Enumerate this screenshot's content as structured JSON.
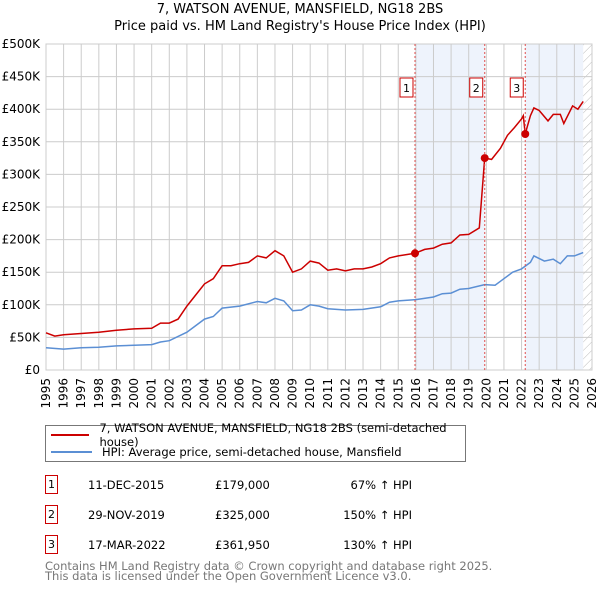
{
  "title": {
    "line1": "7, WATSON AVENUE, MANSFIELD, NG18 2BS",
    "line2": "Price paid vs. HM Land Registry's House Price Index (HPI)"
  },
  "colors": {
    "property": "#cc0000",
    "hpi": "#5b8fd4",
    "shade": "#eef3fc",
    "grid": "#cccccc"
  },
  "chart_data": {
    "type": "line",
    "title": "Price paid vs. HM Land Registry's House Price Index (HPI)",
    "xlim": [
      1995,
      2026
    ],
    "ylim": [
      0,
      500000
    ],
    "x_ticks": [
      "1995",
      "1996",
      "1997",
      "1998",
      "1999",
      "2000",
      "2001",
      "2002",
      "2003",
      "2004",
      "2005",
      "2006",
      "2007",
      "2008",
      "2009",
      "2010",
      "2011",
      "2012",
      "2013",
      "2014",
      "2015",
      "2016",
      "2017",
      "2018",
      "2019",
      "2020",
      "2021",
      "2022",
      "2023",
      "2024",
      "2025",
      "2026"
    ],
    "y_ticks": [
      {
        "v": 0,
        "label": "£0"
      },
      {
        "v": 50000,
        "label": "£50K"
      },
      {
        "v": 100000,
        "label": "£100K"
      },
      {
        "v": 150000,
        "label": "£150K"
      },
      {
        "v": 200000,
        "label": "£200K"
      },
      {
        "v": 250000,
        "label": "£250K"
      },
      {
        "v": 300000,
        "label": "£300K"
      },
      {
        "v": 350000,
        "label": "£350K"
      },
      {
        "v": 400000,
        "label": "£400K"
      },
      {
        "v": 450000,
        "label": "£450K"
      },
      {
        "v": 500000,
        "label": "£500K"
      }
    ],
    "grid": true,
    "shaded_ranges": [
      [
        2015.95,
        2019.91
      ],
      [
        2022.21,
        2025.5
      ]
    ],
    "hatched_from": 2025.5,
    "series": [
      {
        "name": "7, WATSON AVENUE, MANSFIELD, NG18 2BS (semi-detached house)",
        "color": "#cc0000",
        "x": [
          1995,
          1995.5,
          1996,
          1997,
          1998,
          1999,
          2000,
          2001,
          2001.5,
          2002,
          2002.5,
          2003,
          2003.5,
          2004,
          2004.5,
          2005,
          2005.5,
          2006,
          2006.5,
          2007,
          2007.5,
          2008,
          2008.5,
          2009,
          2009.5,
          2010,
          2010.5,
          2011,
          2011.5,
          2012,
          2012.5,
          2013,
          2013.5,
          2014,
          2014.5,
          2015,
          2015.95,
          2016.5,
          2017,
          2017.5,
          2018,
          2018.5,
          2019,
          2019.6,
          2019.91,
          2020.3,
          2020.8,
          2021.2,
          2021.6,
          2022.0,
          2022.1,
          2022.21,
          2022.5,
          2022.7,
          2023,
          2023.5,
          2023.8,
          2024.2,
          2024.4,
          2024.9,
          2025.2,
          2025.5
        ],
        "y": [
          57000,
          52000,
          54000,
          56000,
          58000,
          61000,
          63000,
          64000,
          72000,
          72000,
          78000,
          98000,
          115000,
          132000,
          140000,
          160000,
          160000,
          163000,
          165000,
          175000,
          172000,
          183000,
          175000,
          150000,
          155000,
          167000,
          164000,
          153000,
          155000,
          152000,
          155000,
          155000,
          158000,
          163000,
          172000,
          175000,
          179000,
          185000,
          187000,
          193000,
          195000,
          207000,
          208000,
          218000,
          325000,
          323000,
          340000,
          360000,
          372000,
          385000,
          390000,
          361950,
          390000,
          402000,
          398000,
          382000,
          392000,
          392000,
          378000,
          405000,
          400000,
          412000
        ]
      },
      {
        "name": "HPI: Average price, semi-detached house, Mansfield",
        "color": "#5b8fd4",
        "x": [
          1995,
          1996,
          1997,
          1998,
          1999,
          2000,
          2001,
          2001.5,
          2002,
          2003,
          2004,
          2004.5,
          2005,
          2006,
          2007,
          2007.5,
          2008,
          2008.5,
          2009,
          2009.5,
          2010,
          2010.5,
          2011,
          2012,
          2013,
          2014,
          2014.5,
          2015,
          2016,
          2017,
          2017.5,
          2018,
          2018.5,
          2019,
          2019.9,
          2020.5,
          2021,
          2021.5,
          2022,
          2022.5,
          2022.7,
          2023.3,
          2023.8,
          2024.2,
          2024.6,
          2025,
          2025.5
        ],
        "y": [
          34000,
          32000,
          34000,
          35000,
          37000,
          38000,
          39000,
          43000,
          45000,
          58000,
          78000,
          82000,
          95000,
          98000,
          105000,
          103000,
          110000,
          106000,
          91000,
          92000,
          100000,
          98000,
          94000,
          92000,
          93000,
          97000,
          104000,
          106000,
          108000,
          112000,
          117000,
          118000,
          124000,
          125000,
          131000,
          130000,
          140000,
          150000,
          155000,
          165000,
          175000,
          167000,
          170000,
          163000,
          175000,
          175000,
          180000
        ]
      }
    ],
    "sales": [
      {
        "label": "1",
        "x": 2015.95,
        "y": 179000
      },
      {
        "label": "2",
        "x": 2019.91,
        "y": 325000
      },
      {
        "label": "3",
        "x": 2022.21,
        "y": 361950
      }
    ]
  },
  "legend": {
    "property": "7, WATSON AVENUE, MANSFIELD, NG18 2BS (semi-detached house)",
    "hpi": "HPI: Average price, semi-detached house, Mansfield"
  },
  "transactions": [
    {
      "num": "1",
      "date": "11-DEC-2015",
      "price": "£179,000",
      "hpi": "67% ↑ HPI"
    },
    {
      "num": "2",
      "date": "29-NOV-2019",
      "price": "£325,000",
      "hpi": "150% ↑ HPI"
    },
    {
      "num": "3",
      "date": "17-MAR-2022",
      "price": "£361,950",
      "hpi": "130% ↑ HPI"
    }
  ],
  "footer": {
    "line1": "Contains HM Land Registry data © Crown copyright and database right 2025.",
    "line2": "This data is licensed under the Open Government Licence v3.0."
  }
}
